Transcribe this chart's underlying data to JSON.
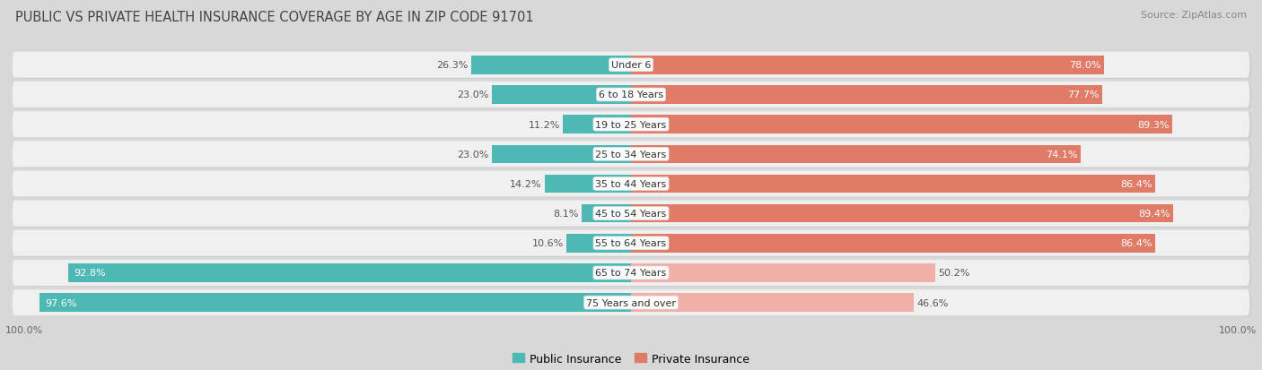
{
  "title": "PUBLIC VS PRIVATE HEALTH INSURANCE COVERAGE BY AGE IN ZIP CODE 91701",
  "source": "Source: ZipAtlas.com",
  "categories": [
    "Under 6",
    "6 to 18 Years",
    "19 to 25 Years",
    "25 to 34 Years",
    "35 to 44 Years",
    "45 to 54 Years",
    "55 to 64 Years",
    "65 to 74 Years",
    "75 Years and over"
  ],
  "public_values": [
    26.3,
    23.0,
    11.2,
    23.0,
    14.2,
    8.1,
    10.6,
    92.8,
    97.6
  ],
  "private_values": [
    78.0,
    77.7,
    89.3,
    74.1,
    86.4,
    89.4,
    86.4,
    50.2,
    46.6
  ],
  "public_color": "#4db8b4",
  "private_color_strong": "#e07b68",
  "private_color_light": "#f0b0a8",
  "row_bg_color": "#e8e8e8",
  "row_inner_color": "#f5f5f5",
  "bg_color": "#d8d8d8",
  "title_color": "#444444",
  "max_value": 100.0,
  "bar_height": 0.62,
  "title_fontsize": 10.5,
  "source_fontsize": 8,
  "bar_label_fontsize": 8,
  "category_fontsize": 8,
  "legend_fontsize": 9,
  "tick_fontsize": 8
}
